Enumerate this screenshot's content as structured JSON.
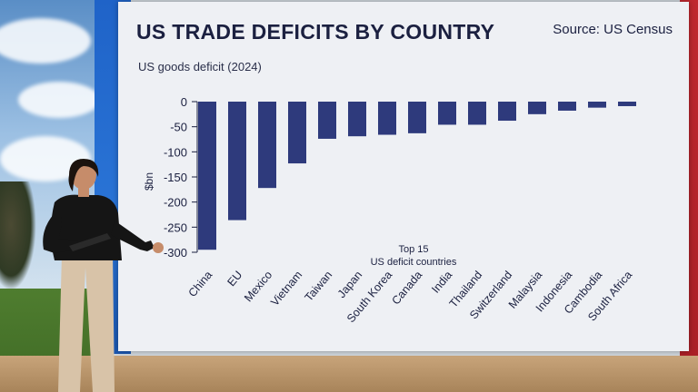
{
  "screen": {
    "title": "US TRADE DEFICITS BY COUNTRY",
    "subtitle": "US goods deficit (2024)",
    "source": "Source: US Census"
  },
  "colors": {
    "bar": "#2e3a7c",
    "screen_bg": "#eef0f4",
    "text": "#1b2040"
  },
  "chart_data": {
    "type": "bar",
    "title": "US TRADE DEFICITS BY COUNTRY",
    "subtitle": "US goods deficit (2024)",
    "xlabel": "",
    "ylabel": "$bn",
    "ylim": [
      -300,
      0
    ],
    "yticks": [
      0,
      -50,
      -100,
      -150,
      -200,
      -250,
      -300
    ],
    "annotation_line1": "Top 15",
    "annotation_line2": "US deficit countries",
    "categories": [
      "China",
      "EU",
      "Mexico",
      "Vietnam",
      "Taiwan",
      "Japan",
      "South Korea",
      "Canada",
      "India",
      "Thailand",
      "Switzerland",
      "Malaysia",
      "Indonesia",
      "Cambodia",
      "South Africa"
    ],
    "values": [
      -295,
      -236,
      -172,
      -123,
      -74,
      -69,
      -66,
      -63,
      -46,
      -46,
      -38,
      -25,
      -18,
      -12,
      -9
    ]
  }
}
